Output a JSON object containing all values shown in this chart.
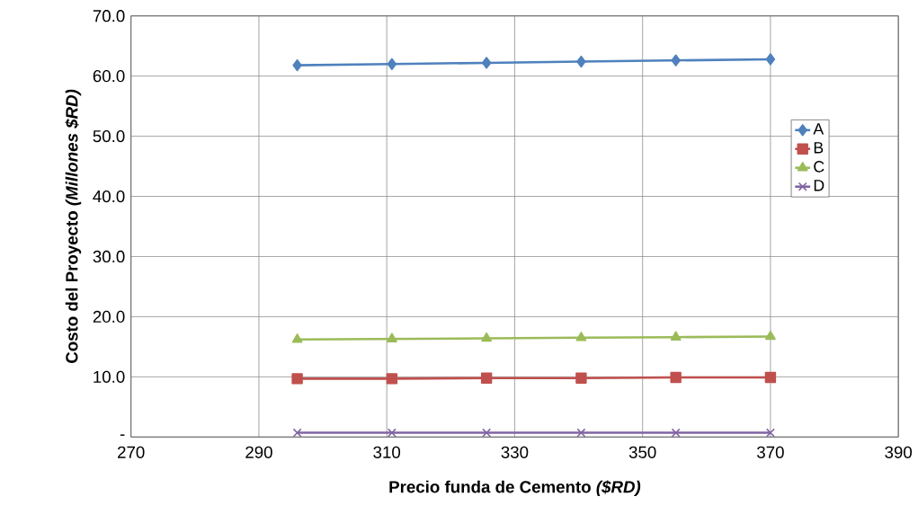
{
  "chart_data": {
    "type": "line",
    "xlabel": "Precio funda de Cemento *($RD)*",
    "ylabel": "Costo del Proyecto *(Millones $RD)*",
    "x": [
      296,
      310.8,
      325.6,
      340.4,
      355.2,
      370
    ],
    "series": [
      {
        "name": "A",
        "color": "#4f81bd",
        "marker": "diamond",
        "values": [
          61.8,
          62.0,
          62.2,
          62.4,
          62.6,
          62.8
        ]
      },
      {
        "name": "B",
        "color": "#c0504d",
        "marker": "square",
        "values": [
          9.7,
          9.7,
          9.8,
          9.8,
          9.9,
          9.9
        ]
      },
      {
        "name": "C",
        "color": "#9bbb59",
        "marker": "triangle",
        "values": [
          16.2,
          16.3,
          16.4,
          16.5,
          16.6,
          16.7
        ]
      },
      {
        "name": "D",
        "color": "#8064a2",
        "marker": "cross",
        "values": [
          0.7,
          0.7,
          0.7,
          0.7,
          0.7,
          0.7
        ]
      }
    ],
    "xlim": [
      270,
      390
    ],
    "xticks": [
      270,
      290,
      310,
      330,
      350,
      370,
      390
    ],
    "ylim": [
      0,
      70
    ],
    "yticks": [
      {
        "value": 0,
        "label": "-"
      },
      {
        "value": 10,
        "label": "10.0"
      },
      {
        "value": 20,
        "label": "20.0"
      },
      {
        "value": 30,
        "label": "30.0"
      },
      {
        "value": 40,
        "label": "40.0"
      },
      {
        "value": 50,
        "label": "50.0"
      },
      {
        "value": 60,
        "label": "60.0"
      },
      {
        "value": 70,
        "label": "70.0"
      }
    ],
    "grid": true,
    "legend": "right",
    "line_style": "solid"
  }
}
